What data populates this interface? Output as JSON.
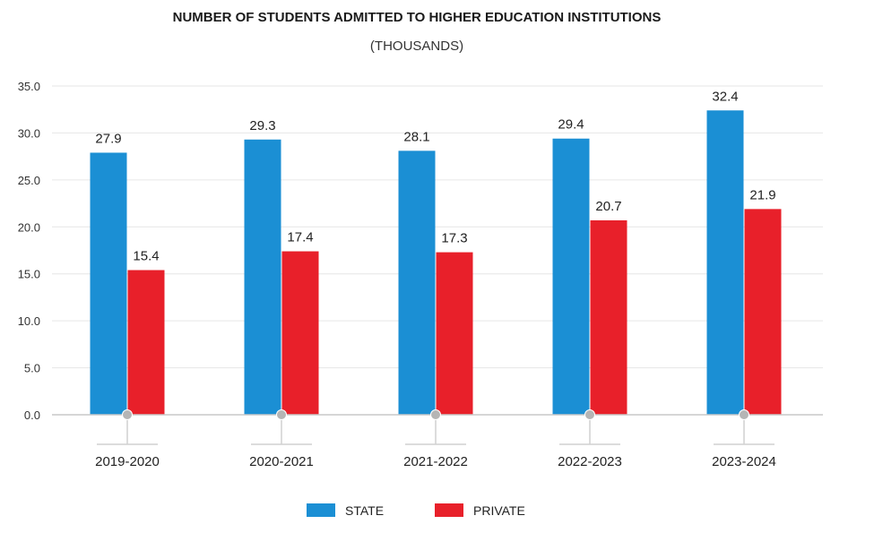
{
  "chart_data": {
    "type": "bar",
    "title": "NUMBER OF STUDENTS ADMITTED TO HIGHER EDUCATION INSTITUTIONS",
    "subtitle": "(THOUSANDS)",
    "xlabel": "",
    "ylabel": "",
    "categories": [
      "2019-2020",
      "2020-2021",
      "2021-2022",
      "2022-2023",
      "2023-2024"
    ],
    "series": [
      {
        "name": "STATE",
        "color": "#1B8FD4",
        "values": [
          27.9,
          29.3,
          28.1,
          29.4,
          32.4
        ]
      },
      {
        "name": "PRIVATE",
        "color": "#E8202A",
        "values": [
          15.4,
          17.4,
          17.3,
          20.7,
          21.9
        ]
      }
    ],
    "ylim": [
      0,
      35
    ],
    "yticks": [
      "0.0",
      "5.0",
      "10.0",
      "15.0",
      "20.0",
      "25.0",
      "30.0",
      "35.0"
    ],
    "grid": true,
    "legend_position": "bottom-center",
    "data_labels": true
  }
}
